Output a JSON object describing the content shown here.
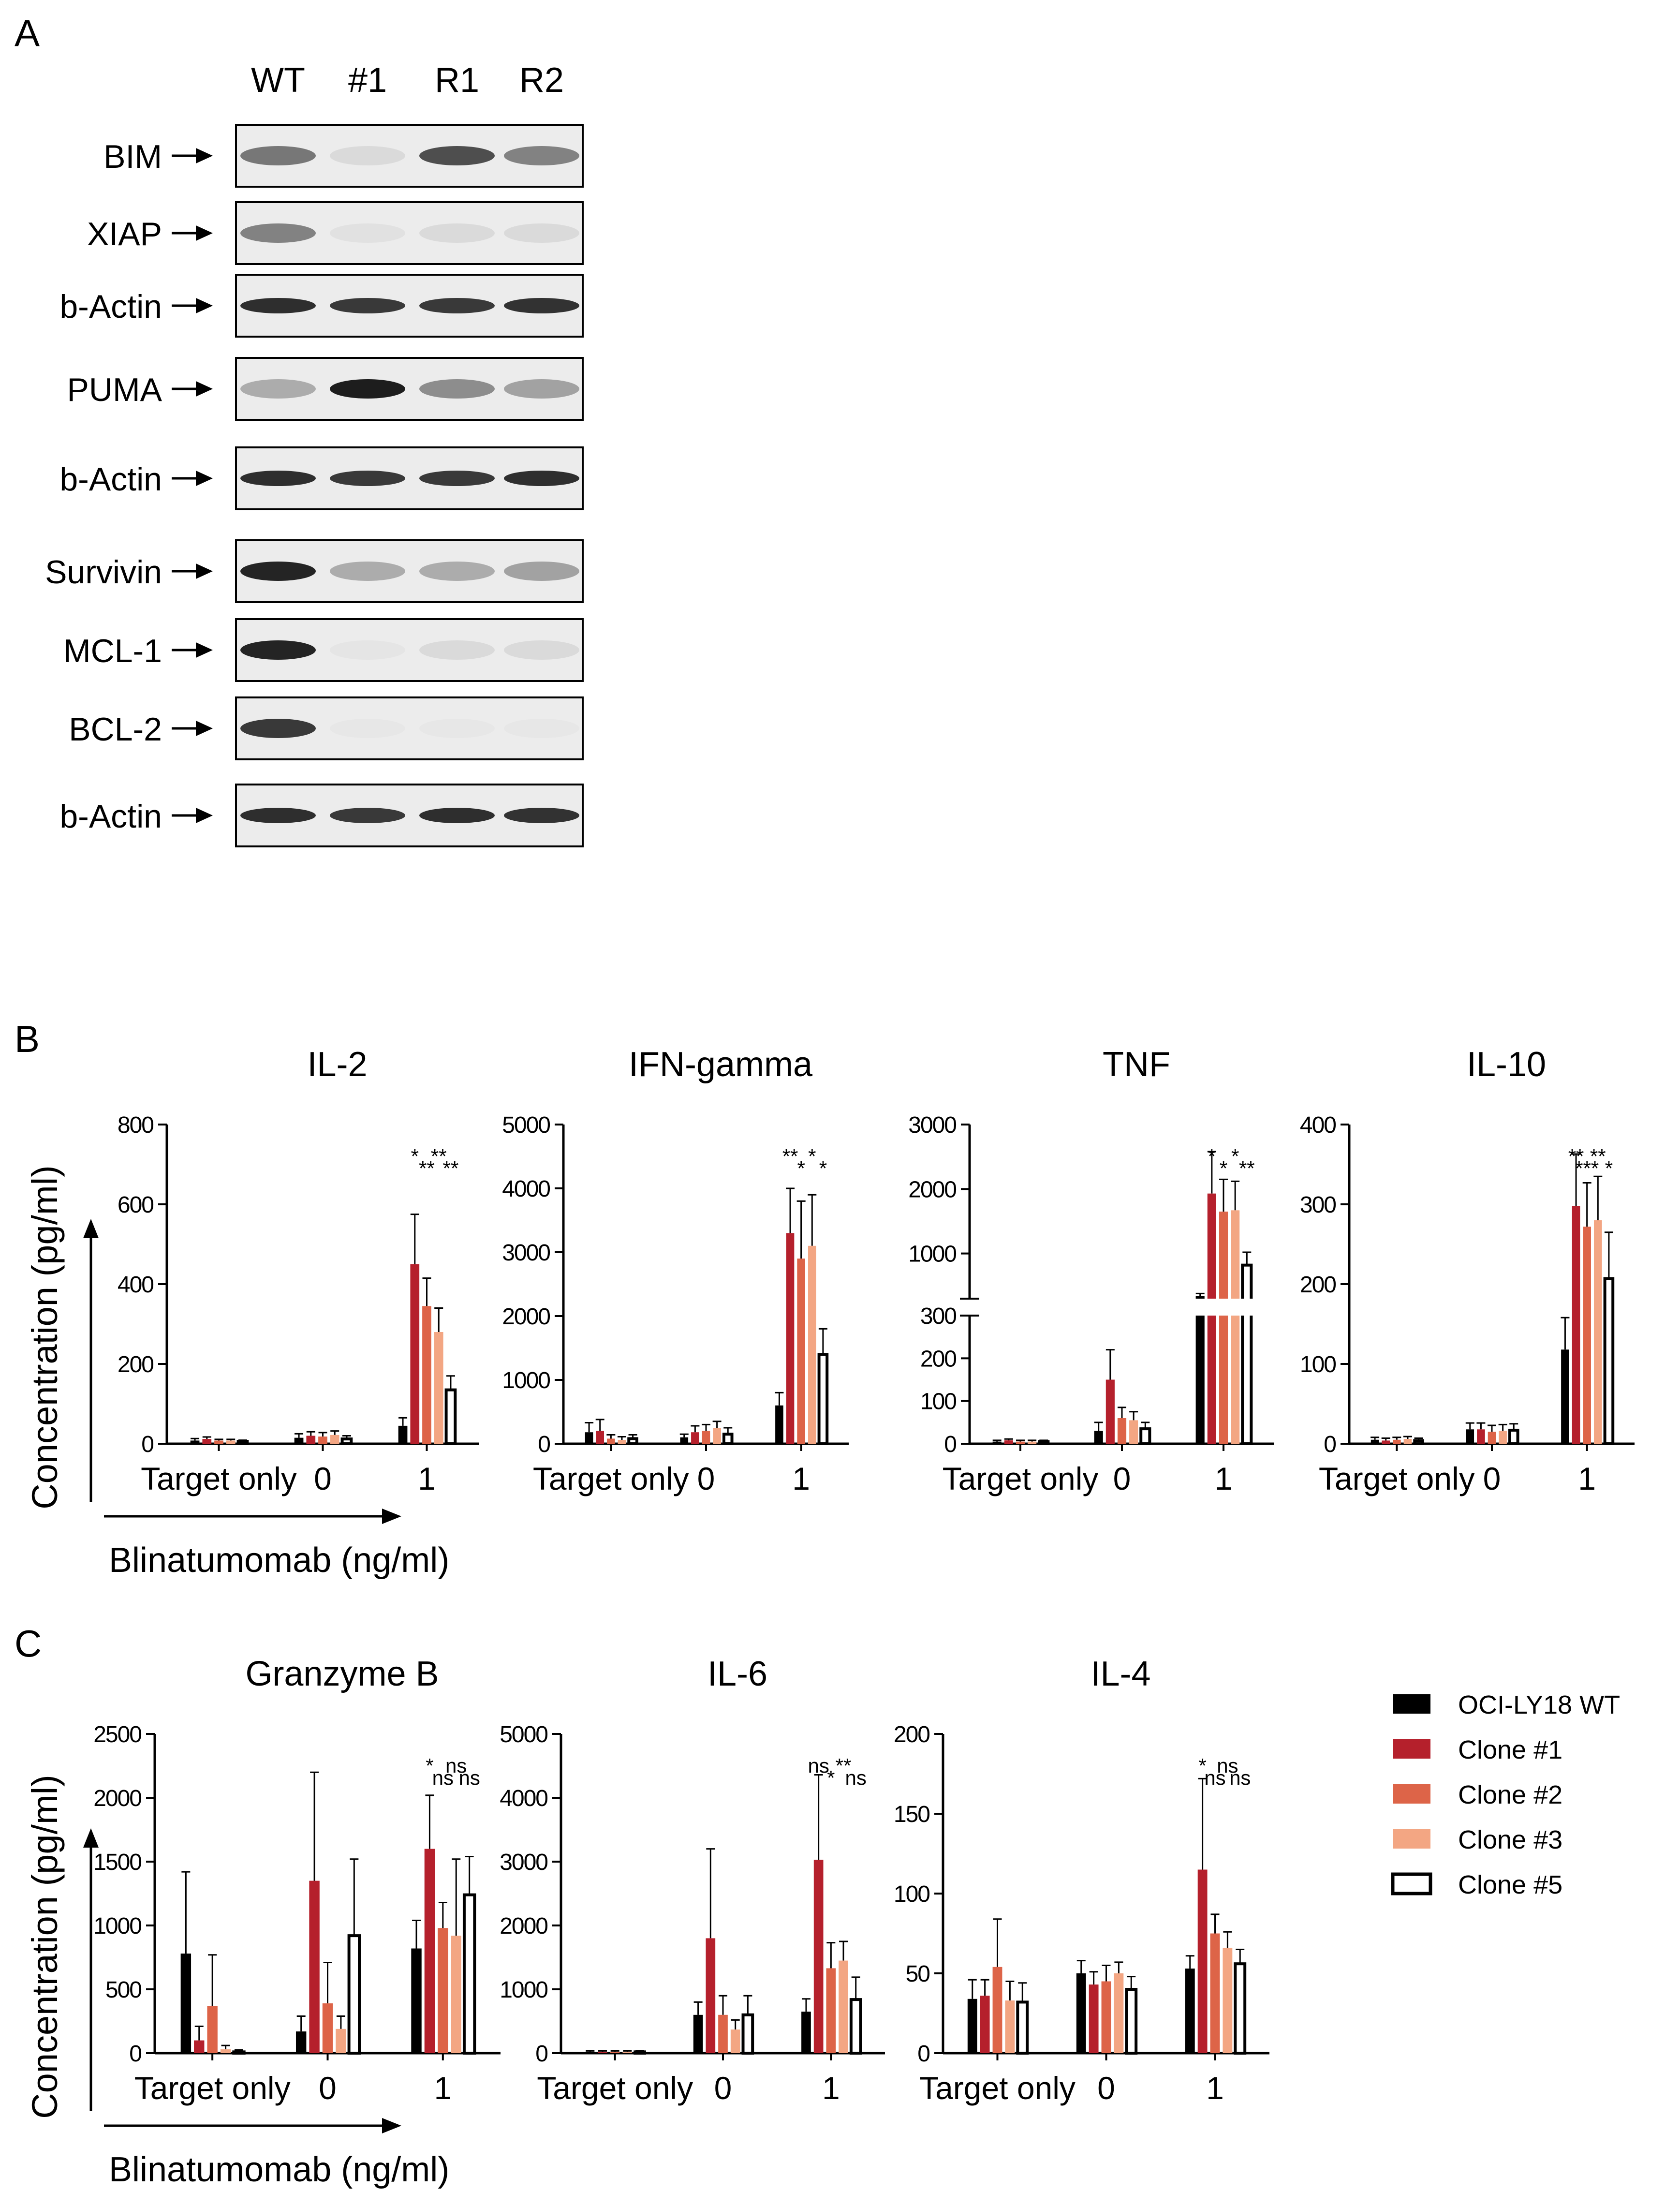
{
  "panels": {
    "a": "A",
    "b": "B",
    "c": "C"
  },
  "blot": {
    "lanes": [
      "WT",
      "#1",
      "R1",
      "R2"
    ],
    "rows": [
      {
        "label": "BIM",
        "bands": [
          0.55,
          0.08,
          0.75,
          0.5
        ],
        "thick": false
      },
      {
        "label": "XIAP",
        "bands": [
          0.5,
          0.05,
          0.08,
          0.08
        ],
        "thick": false
      },
      {
        "label": "b-Actin",
        "bands": [
          0.9,
          0.85,
          0.85,
          0.88
        ],
        "thick": true
      },
      {
        "label": "PUMA",
        "bands": [
          0.3,
          0.98,
          0.45,
          0.35
        ],
        "thick": false
      },
      {
        "label": "b-Actin",
        "bands": [
          0.9,
          0.85,
          0.85,
          0.9
        ],
        "thick": true
      },
      {
        "label": "Survivin",
        "bands": [
          0.95,
          0.3,
          0.3,
          0.35
        ],
        "thick": false
      },
      {
        "label": "MCL-1",
        "bands": [
          0.95,
          0.03,
          0.08,
          0.08
        ],
        "thick": false
      },
      {
        "label": "BCL-2",
        "bands": [
          0.85,
          0.02,
          0.02,
          0.02
        ],
        "thick": false
      },
      {
        "label": "b-Actin",
        "bands": [
          0.9,
          0.85,
          0.9,
          0.88
        ],
        "thick": true
      }
    ]
  },
  "axis_common": {
    "ylabel": "Concentration (pg/ml)",
    "xlabel": "Blinatumomab (ng/ml)",
    "groups": [
      "Target only",
      "0",
      "1"
    ]
  },
  "legend": {
    "entries": [
      {
        "name": "OCI-LY18 WT",
        "color": "#000000"
      },
      {
        "name": "Clone #1",
        "color": "#b5202c"
      },
      {
        "name": "Clone #2",
        "color": "#dd6448"
      },
      {
        "name": "Clone #3",
        "color": "#f3a683"
      },
      {
        "name": "Clone #5",
        "color": "#ffffff"
      }
    ]
  },
  "chart_data": [
    {
      "type": "bar",
      "title": "IL-2",
      "ylim": [
        0,
        800
      ],
      "yticks": [
        0,
        200,
        400,
        600,
        800
      ],
      "categories": [
        "Target only",
        "0",
        "1"
      ],
      "series": [
        {
          "name": "OCI-LY18 WT",
          "values": [
            8,
            15,
            45
          ],
          "err": [
            5,
            10,
            20
          ]
        },
        {
          "name": "Clone #1",
          "values": [
            12,
            20,
            450
          ],
          "err": [
            5,
            10,
            125
          ]
        },
        {
          "name": "Clone #2",
          "values": [
            8,
            18,
            345
          ],
          "err": [
            3,
            10,
            70
          ]
        },
        {
          "name": "Clone #3",
          "values": [
            8,
            22,
            280
          ],
          "err": [
            3,
            10,
            60
          ]
        },
        {
          "name": "Clone #5",
          "values": [
            6,
            12,
            135
          ],
          "err": [
            3,
            8,
            35
          ]
        }
      ],
      "sig": [
        "*",
        "**",
        "**",
        "**"
      ]
    },
    {
      "type": "bar",
      "title": "IFN-gamma",
      "ylim": [
        0,
        5000
      ],
      "yticks": [
        0,
        1000,
        2000,
        3000,
        4000,
        5000
      ],
      "categories": [
        "Target only",
        "0",
        "1"
      ],
      "series": [
        {
          "name": "OCI-LY18 WT",
          "values": [
            180,
            100,
            600
          ],
          "err": [
            150,
            50,
            200
          ]
        },
        {
          "name": "Clone #1",
          "values": [
            200,
            180,
            3300
          ],
          "err": [
            180,
            100,
            700
          ]
        },
        {
          "name": "Clone #2",
          "values": [
            80,
            200,
            2900
          ],
          "err": [
            60,
            100,
            900
          ]
        },
        {
          "name": "Clone #3",
          "values": [
            60,
            250,
            3100
          ],
          "err": [
            50,
            100,
            800
          ]
        },
        {
          "name": "Clone #5",
          "values": [
            80,
            150,
            1400
          ],
          "err": [
            60,
            100,
            400
          ]
        }
      ],
      "sig": [
        "**",
        "*",
        "*",
        "*"
      ]
    },
    {
      "type": "bar",
      "title": "TNF",
      "yticks": [
        0,
        100,
        200,
        300,
        1000,
        2000,
        3000
      ],
      "categories": [
        "Target only",
        "0",
        "1"
      ],
      "series": [
        {
          "name": "OCI-LY18 WT",
          "values": [
            5,
            30,
            340
          ],
          "err": [
            3,
            20,
            40
          ]
        },
        {
          "name": "Clone #1",
          "values": [
            8,
            150,
            1930
          ],
          "err": [
            3,
            70,
            650
          ]
        },
        {
          "name": "Clone #2",
          "values": [
            5,
            60,
            1650
          ],
          "err": [
            3,
            25,
            500
          ]
        },
        {
          "name": "Clone #3",
          "values": [
            5,
            55,
            1670
          ],
          "err": [
            3,
            20,
            450
          ]
        },
        {
          "name": "Clone #5",
          "values": [
            5,
            35,
            820
          ],
          "err": [
            3,
            15,
            200
          ]
        }
      ],
      "sig": [
        "*",
        "*",
        "*",
        "**"
      ]
    },
    {
      "type": "bar",
      "title": "IL-10",
      "ylim": [
        0,
        400
      ],
      "yticks": [
        0,
        100,
        200,
        300,
        400
      ],
      "categories": [
        "Target only",
        "0",
        "1"
      ],
      "series": [
        {
          "name": "OCI-LY18 WT",
          "values": [
            5,
            18,
            118
          ],
          "err": [
            3,
            8,
            40
          ]
        },
        {
          "name": "Clone #1",
          "values": [
            4,
            18,
            298
          ],
          "err": [
            3,
            8,
            65
          ]
        },
        {
          "name": "Clone #2",
          "values": [
            5,
            15,
            272
          ],
          "err": [
            3,
            8,
            55
          ]
        },
        {
          "name": "Clone #3",
          "values": [
            6,
            16,
            280
          ],
          "err": [
            3,
            8,
            55
          ]
        },
        {
          "name": "Clone #5",
          "values": [
            4,
            17,
            207
          ],
          "err": [
            3,
            8,
            58
          ]
        }
      ],
      "sig": [
        "**",
        "***",
        "**",
        "*"
      ]
    },
    {
      "type": "bar",
      "title": "Granzyme B",
      "ylim": [
        0,
        2500
      ],
      "yticks": [
        0,
        500,
        1000,
        1500,
        2000,
        2500
      ],
      "categories": [
        "Target only",
        "0",
        "1"
      ],
      "series": [
        {
          "name": "OCI-LY18 WT",
          "values": [
            780,
            170,
            820
          ],
          "err": [
            640,
            120,
            220
          ]
        },
        {
          "name": "Clone #1",
          "values": [
            100,
            1350,
            1600
          ],
          "err": [
            110,
            850,
            420
          ]
        },
        {
          "name": "Clone #2",
          "values": [
            370,
            390,
            980
          ],
          "err": [
            400,
            320,
            200
          ]
        },
        {
          "name": "Clone #3",
          "values": [
            30,
            190,
            920
          ],
          "err": [
            30,
            100,
            600
          ]
        },
        {
          "name": "Clone #5",
          "values": [
            10,
            920,
            1240
          ],
          "err": [
            15,
            600,
            300
          ]
        }
      ],
      "sig": [
        "*",
        "ns",
        "ns",
        "ns"
      ]
    },
    {
      "type": "bar",
      "title": "IL-6",
      "ylim": [
        0,
        5000
      ],
      "yticks": [
        0,
        1000,
        2000,
        3000,
        4000,
        5000
      ],
      "categories": [
        "Target only",
        "0",
        "1"
      ],
      "series": [
        {
          "name": "OCI-LY18 WT",
          "values": [
            20,
            600,
            650
          ],
          "err": [
            15,
            200,
            200
          ]
        },
        {
          "name": "Clone #1",
          "values": [
            20,
            1800,
            3030
          ],
          "err": [
            15,
            1400,
            1330
          ]
        },
        {
          "name": "Clone #2",
          "values": [
            20,
            600,
            1330
          ],
          "err": [
            15,
            300,
            400
          ]
        },
        {
          "name": "Clone #3",
          "values": [
            20,
            370,
            1450
          ],
          "err": [
            15,
            150,
            300
          ]
        },
        {
          "name": "Clone #5",
          "values": [
            20,
            600,
            840
          ],
          "err": [
            15,
            300,
            350
          ]
        }
      ],
      "sig": [
        "ns",
        "*",
        "**",
        "ns"
      ]
    },
    {
      "type": "bar",
      "title": "IL-4",
      "ylim": [
        0,
        200
      ],
      "yticks": [
        0,
        50,
        100,
        150,
        200
      ],
      "categories": [
        "Target only",
        "0",
        "1"
      ],
      "series": [
        {
          "name": "OCI-LY18 WT",
          "values": [
            34,
            50,
            53
          ],
          "err": [
            12,
            8,
            8
          ]
        },
        {
          "name": "Clone #1",
          "values": [
            36,
            43,
            115
          ],
          "err": [
            10,
            8,
            57
          ]
        },
        {
          "name": "Clone #2",
          "values": [
            54,
            45,
            75
          ],
          "err": [
            30,
            10,
            12
          ]
        },
        {
          "name": "Clone #3",
          "values": [
            33,
            50,
            66
          ],
          "err": [
            12,
            7,
            10
          ]
        },
        {
          "name": "Clone #5",
          "values": [
            32,
            40,
            56
          ],
          "err": [
            12,
            8,
            9
          ]
        }
      ],
      "sig": [
        "*",
        "ns",
        "ns",
        "ns"
      ]
    }
  ]
}
